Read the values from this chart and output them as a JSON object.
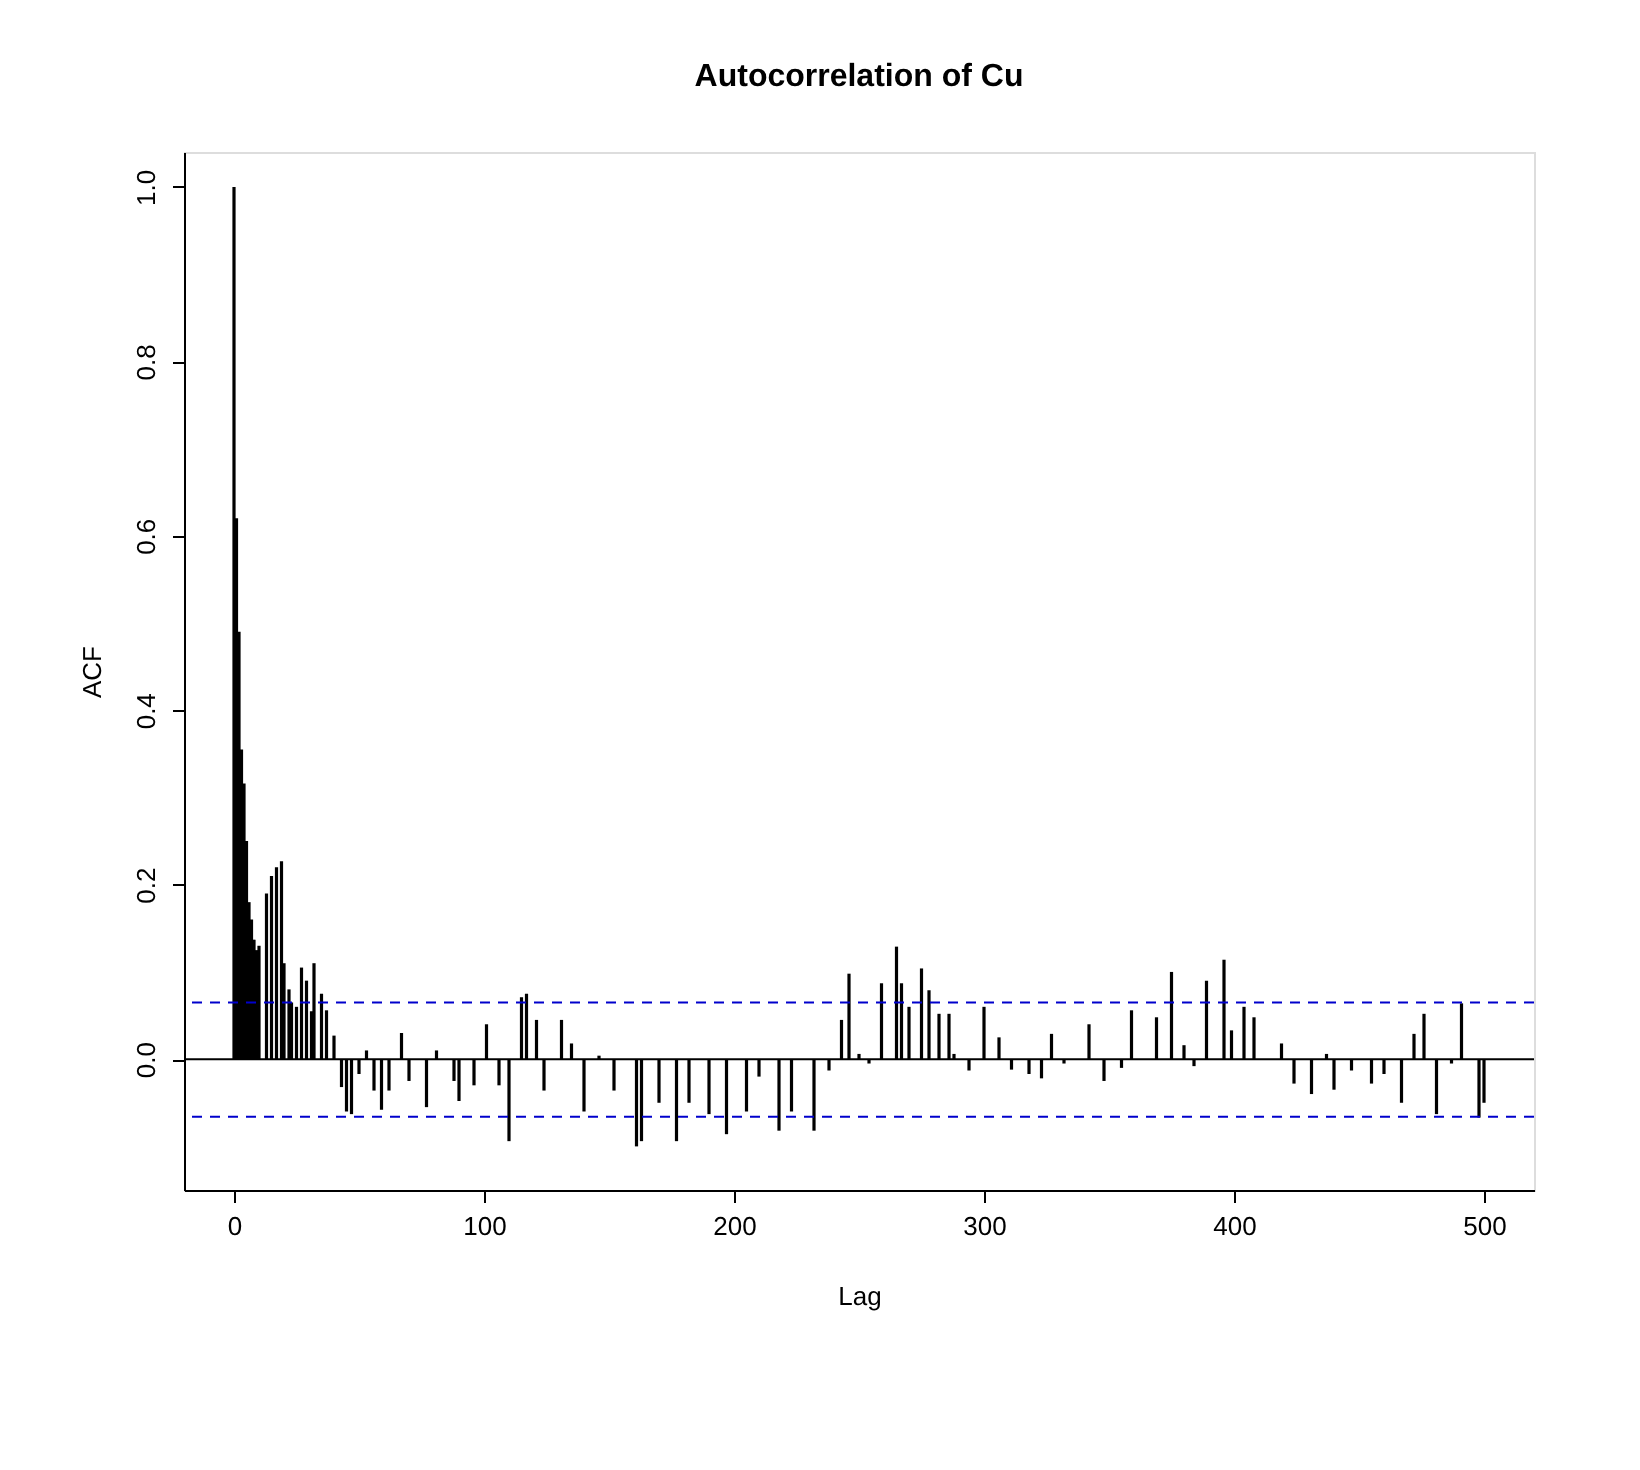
{
  "chart_data": {
    "type": "bar",
    "title": "Autocorrelation of Cu",
    "xlabel": "Lag",
    "ylabel": "ACF",
    "x": [
      0,
      1,
      2,
      3,
      4,
      5,
      6,
      7,
      8,
      9,
      10,
      13,
      15,
      17,
      19,
      20,
      22,
      23,
      25,
      27,
      29,
      31,
      32,
      35,
      37,
      40,
      43,
      45,
      47,
      50,
      53,
      56,
      59,
      62,
      67,
      70,
      77,
      81,
      88,
      90,
      96,
      101,
      106,
      110,
      115,
      117,
      121,
      124,
      127,
      131,
      135,
      140,
      146,
      152,
      161,
      163,
      170,
      177,
      182,
      190,
      197,
      205,
      210,
      218,
      223,
      232,
      238,
      243,
      246,
      250,
      254,
      259,
      265,
      267,
      270,
      275,
      278,
      282,
      286,
      288,
      294,
      300,
      306,
      311,
      318,
      323,
      327,
      332,
      342,
      348,
      355,
      359,
      364,
      369,
      375,
      380,
      384,
      389,
      396,
      399,
      404,
      408,
      419,
      424,
      431,
      437,
      440,
      447,
      455,
      460,
      467,
      472,
      476,
      481,
      487,
      491,
      494,
      498,
      500
    ],
    "values": [
      1.0,
      0.62,
      0.49,
      0.355,
      0.316,
      0.25,
      0.18,
      0.16,
      0.137,
      0.125,
      0.13,
      0.19,
      0.21,
      0.22,
      0.227,
      0.11,
      0.08,
      0.065,
      0.06,
      0.105,
      0.09,
      0.055,
      0.11,
      0.075,
      0.056,
      0.027,
      -0.032,
      -0.06,
      -0.063,
      -0.017,
      0.01,
      -0.036,
      -0.058,
      -0.036,
      0.03,
      -0.025,
      -0.055,
      0.01,
      -0.025,
      -0.048,
      -0.03,
      0.04,
      -0.03,
      -0.094,
      0.071,
      0.075,
      0.045,
      -0.036,
      0,
      0.045,
      0.018,
      -0.06,
      0.004,
      -0.036,
      -0.1,
      -0.094,
      -0.05,
      -0.094,
      -0.05,
      -0.063,
      -0.086,
      -0.06,
      -0.02,
      -0.082,
      -0.06,
      -0.082,
      -0.013,
      0.045,
      0.098,
      0.006,
      -0.005,
      0.087,
      0.129,
      0.087,
      0.06,
      0.104,
      0.079,
      0.052,
      0.052,
      0.006,
      -0.013,
      0.06,
      0.025,
      -0.012,
      -0.017,
      -0.022,
      0.029,
      -0.005,
      0.04,
      -0.025,
      -0.01,
      0.056,
      0,
      0.048,
      0.1,
      0.016,
      -0.008,
      0.09,
      0.114,
      0.033,
      0.06,
      0.048,
      0.018,
      -0.028,
      -0.04,
      0.006,
      -0.035,
      -0.013,
      -0.028,
      -0.017,
      -0.05,
      0.029,
      0.052,
      -0.063,
      -0.005,
      0.064,
      0,
      -0.067,
      -0.05
    ],
    "color": "#000000",
    "xlim": [
      -20,
      520
    ],
    "xticks": [
      0,
      100,
      200,
      300,
      400,
      500
    ],
    "ylim": [
      -0.15,
      1.04
    ],
    "yticks": [
      {
        "value": 0,
        "label": "0.0"
      },
      {
        "value": 0.2,
        "label": "0.2"
      },
      {
        "value": 0.4,
        "label": "0.4"
      },
      {
        "value": 0.6,
        "label": "0.6"
      },
      {
        "value": 0.8,
        "label": "0.8"
      },
      {
        "value": 1,
        "label": "1.0"
      }
    ],
    "ref_lines": [
      {
        "axis": "y",
        "value": 0,
        "color": "#000000",
        "line_style": "solid"
      },
      {
        "axis": "y",
        "value": 0.065,
        "color": "#0000cc",
        "line_style": "dashed"
      },
      {
        "axis": "y",
        "value": -0.066,
        "color": "#0000cc",
        "line_style": "dashed"
      }
    ],
    "grid": false
  }
}
